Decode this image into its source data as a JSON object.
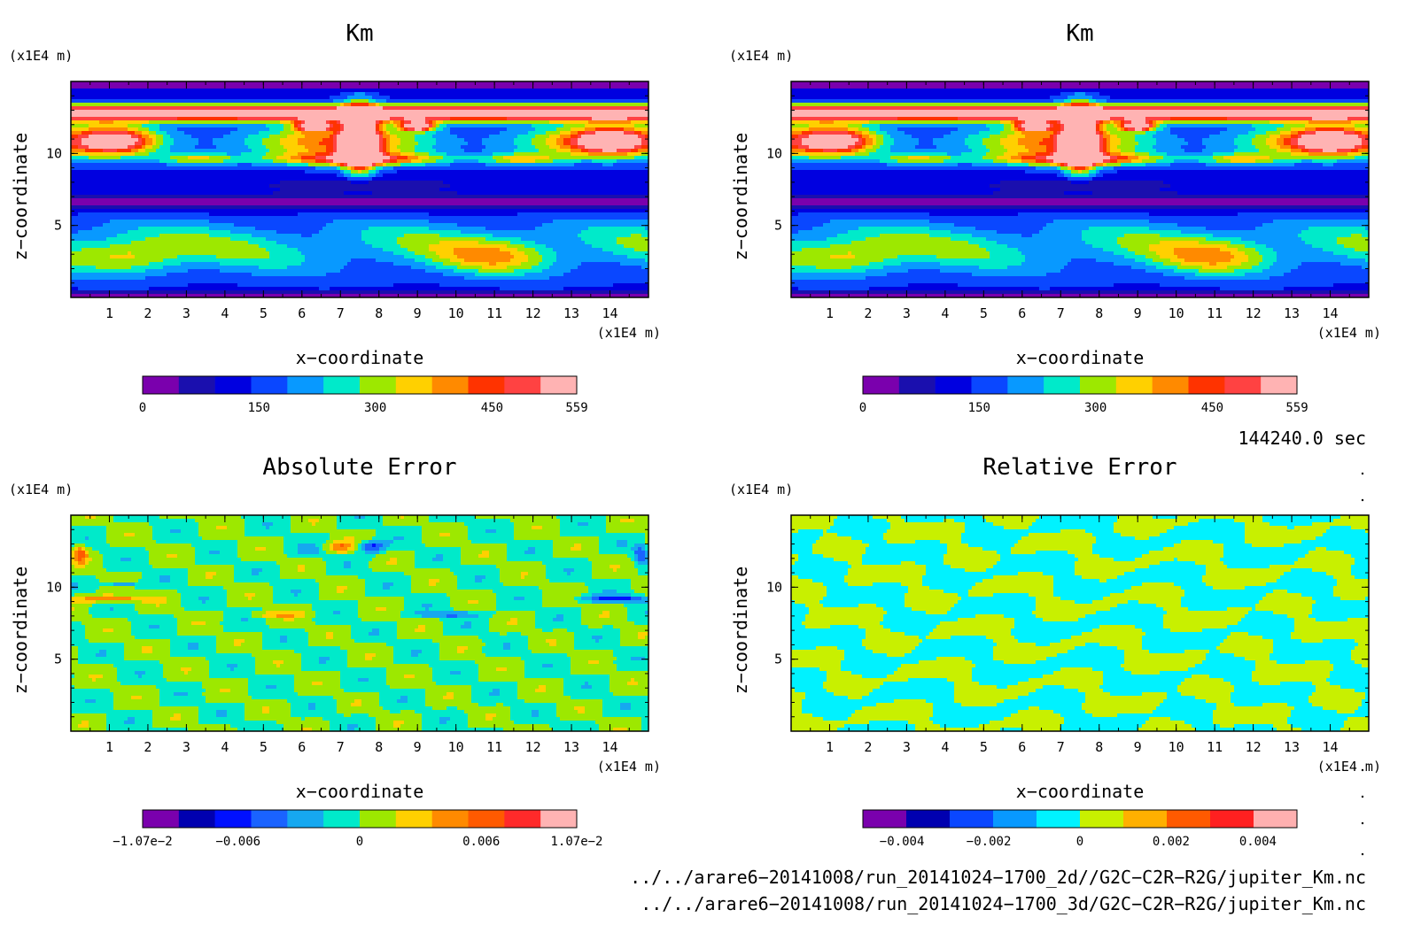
{
  "panels": [
    {
      "title": "Km",
      "yunit": "(x1E4 m)",
      "xunit": "(x1E4 m)",
      "xlabel": "x−coordinate",
      "ylabel": "z−coordinate",
      "field": "km",
      "colorbar": {
        "colors": [
          "#7a00ad",
          "#1a0fae",
          "#0000e0",
          "#0a47ff",
          "#0899ff",
          "#00eaca",
          "#9de800",
          "#ffd000",
          "#ff8a00",
          "#ff3300",
          "#ff4242",
          "#ffb3b3"
        ],
        "labels": [
          "0",
          "150",
          "300",
          "450",
          "559"
        ],
        "label_fracs": [
          0,
          0.268,
          0.536,
          0.805,
          1.0
        ]
      }
    },
    {
      "title": "Km",
      "yunit": "(x1E4 m)",
      "xunit": "(x1E4 m)",
      "xlabel": "x−coordinate",
      "ylabel": "z−coordinate",
      "field": "km",
      "colorbar": {
        "colors": [
          "#7a00ad",
          "#1a0fae",
          "#0000e0",
          "#0a47ff",
          "#0899ff",
          "#00eaca",
          "#9de800",
          "#ffd000",
          "#ff8a00",
          "#ff3300",
          "#ff4242",
          "#ffb3b3"
        ],
        "labels": [
          "0",
          "150",
          "300",
          "450",
          "559"
        ],
        "label_fracs": [
          0,
          0.268,
          0.536,
          0.805,
          1.0
        ]
      }
    },
    {
      "title": "Absolute Error",
      "yunit": "(x1E4 m)",
      "xunit": "(x1E4 m)",
      "xlabel": "x−coordinate",
      "ylabel": "z−coordinate",
      "field": "abs",
      "colorbar": {
        "colors": [
          "#7a00ad",
          "#0000b0",
          "#0010ff",
          "#1a63ff",
          "#16a8f0",
          "#00eaca",
          "#9de800",
          "#ffd000",
          "#ff8a00",
          "#ff5a00",
          "#ff2a2a",
          "#ffb3b3"
        ],
        "labels": [
          "−1.07e−2",
          "−0.006",
          "0",
          "0.006",
          "1.07e−2"
        ],
        "label_fracs": [
          0,
          0.22,
          0.5,
          0.78,
          1.0
        ]
      }
    },
    {
      "title": "Relative Error",
      "yunit": "(x1E4 m)",
      "xunit": "(x1E4 m)",
      "xlabel": "x−coordinate",
      "ylabel": "z−coordinate",
      "field": "rel",
      "colorbar": {
        "colors": [
          "#7a00ad",
          "#0000b0",
          "#0a47ff",
          "#0899ff",
          "#00f2ff",
          "#c8f000",
          "#ffb000",
          "#ff5a00",
          "#ff2020",
          "#ffb0b0"
        ],
        "labels": [
          "−0.004",
          "−0.002",
          "0",
          "0.002",
          "0.004"
        ],
        "label_fracs": [
          0.09,
          0.29,
          0.5,
          0.71,
          0.91
        ]
      }
    }
  ],
  "xticks": [
    "1",
    "2",
    "3",
    "4",
    "5",
    "6",
    "7",
    "8",
    "9",
    "10",
    "11",
    "12",
    "13",
    "14"
  ],
  "yticks": [
    "5",
    "10"
  ],
  "time_label": "144240.0 sec",
  "file_paths": [
    "../../arare6−20141008/run_20141024−1700_2d//G2C−C2R−R2G/jupiter_Km.nc",
    "../../arare6−20141008/run_20141024−1700_3d/G2C−C2R−R2G/jupiter_Km.nc"
  ],
  "chart_data": [
    {
      "type": "heatmap",
      "title": "Km",
      "xlabel": "x−coordinate",
      "ylabel": "z−coordinate",
      "x_unit": "(x1E4 m)",
      "y_unit": "(x1E4 m)",
      "xlim": [
        0,
        15
      ],
      "ylim": [
        0,
        15
      ],
      "x_ticks": [
        1,
        2,
        3,
        4,
        5,
        6,
        7,
        8,
        9,
        10,
        11,
        12,
        13,
        14
      ],
      "y_ticks": [
        5,
        10
      ],
      "colorbar_range": [
        0,
        559
      ],
      "colorbar_ticks": [
        0,
        150,
        300,
        450,
        559
      ]
    },
    {
      "type": "heatmap",
      "title": "Km",
      "xlabel": "x−coordinate",
      "ylabel": "z−coordinate",
      "x_unit": "(x1E4 m)",
      "y_unit": "(x1E4 m)",
      "xlim": [
        0,
        15
      ],
      "ylim": [
        0,
        15
      ],
      "x_ticks": [
        1,
        2,
        3,
        4,
        5,
        6,
        7,
        8,
        9,
        10,
        11,
        12,
        13,
        14
      ],
      "y_ticks": [
        5,
        10
      ],
      "colorbar_range": [
        0,
        559
      ],
      "colorbar_ticks": [
        0,
        150,
        300,
        450,
        559
      ]
    },
    {
      "type": "heatmap",
      "title": "Absolute Error",
      "xlabel": "x−coordinate",
      "ylabel": "z−coordinate",
      "x_unit": "(x1E4 m)",
      "y_unit": "(x1E4 m)",
      "xlim": [
        0,
        15
      ],
      "ylim": [
        0,
        15
      ],
      "x_ticks": [
        1,
        2,
        3,
        4,
        5,
        6,
        7,
        8,
        9,
        10,
        11,
        12,
        13,
        14
      ],
      "y_ticks": [
        5,
        10
      ],
      "colorbar_range": [
        -0.0107,
        0.0107
      ],
      "colorbar_ticks": [
        -0.0107,
        -0.006,
        0,
        0.006,
        0.0107
      ]
    },
    {
      "type": "heatmap",
      "title": "Relative Error",
      "xlabel": "x−coordinate",
      "ylabel": "z−coordinate",
      "x_unit": "(x1E4 m)",
      "y_unit": "(x1E4 m)",
      "xlim": [
        0,
        15
      ],
      "ylim": [
        0,
        15
      ],
      "x_ticks": [
        1,
        2,
        3,
        4,
        5,
        6,
        7,
        8,
        9,
        10,
        11,
        12,
        13,
        14
      ],
      "y_ticks": [
        5,
        10
      ],
      "colorbar_ticks": [
        -0.004,
        -0.002,
        0,
        0.002,
        0.004
      ]
    }
  ]
}
